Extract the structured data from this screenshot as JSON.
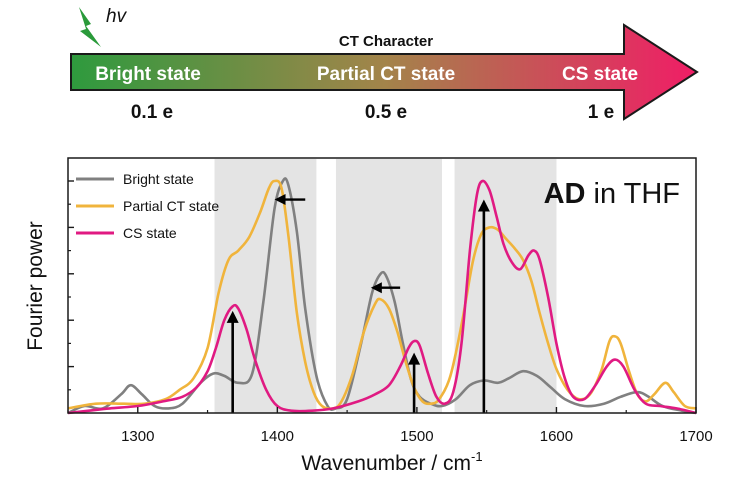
{
  "header": {
    "excitation_label": "hv",
    "ct_character_label": "CT Character",
    "states": [
      "Bright state",
      "Partial CT state",
      "CS state"
    ],
    "charges": [
      "0.1 e",
      "0.5 e",
      "1 e"
    ],
    "arrow_colors": [
      "#2e9a3e",
      "#a3844a",
      "#f01d66"
    ],
    "lightning_color": "#2a9a3a"
  },
  "chart_data": {
    "type": "line",
    "xlabel": "Wavenumber / cm",
    "xlabel_superscript": "-1",
    "ylabel": "Fourier power",
    "annotation_bold": "AD",
    "annotation_rest": " in THF",
    "xlim": [
      1250,
      1700
    ],
    "ylim": [
      0,
      1.02
    ],
    "xticks": [
      1300,
      1400,
      1500,
      1600,
      1700
    ],
    "xtick_labels": [
      "1300",
      "1400",
      "1500",
      "1600",
      "1700"
    ],
    "y_tick_values": [
      0.2,
      0.4,
      0.6,
      0.8,
      1.0
    ],
    "shaded_regions": [
      [
        1355,
        1428
      ],
      [
        1442,
        1518
      ],
      [
        1527,
        1600
      ]
    ],
    "series": [
      {
        "name": "Bright state",
        "color": "#808080",
        "points": [
          [
            1250,
            0.0
          ],
          [
            1262,
            0.03
          ],
          [
            1275,
            0.02
          ],
          [
            1288,
            0.08
          ],
          [
            1295,
            0.12
          ],
          [
            1303,
            0.08
          ],
          [
            1312,
            0.03
          ],
          [
            1322,
            0.02
          ],
          [
            1332,
            0.04
          ],
          [
            1345,
            0.13
          ],
          [
            1354,
            0.17
          ],
          [
            1362,
            0.16
          ],
          [
            1372,
            0.13
          ],
          [
            1382,
            0.17
          ],
          [
            1390,
            0.48
          ],
          [
            1398,
            0.88
          ],
          [
            1404,
            1.0
          ],
          [
            1408,
            0.98
          ],
          [
            1414,
            0.78
          ],
          [
            1420,
            0.45
          ],
          [
            1428,
            0.16
          ],
          [
            1436,
            0.03
          ],
          [
            1442,
            0.02
          ],
          [
            1450,
            0.06
          ],
          [
            1460,
            0.3
          ],
          [
            1468,
            0.52
          ],
          [
            1474,
            0.6
          ],
          [
            1478,
            0.59
          ],
          [
            1484,
            0.48
          ],
          [
            1490,
            0.3
          ],
          [
            1496,
            0.14
          ],
          [
            1502,
            0.07
          ],
          [
            1510,
            0.04
          ],
          [
            1518,
            0.03
          ],
          [
            1528,
            0.06
          ],
          [
            1538,
            0.12
          ],
          [
            1548,
            0.14
          ],
          [
            1558,
            0.13
          ],
          [
            1566,
            0.15
          ],
          [
            1576,
            0.18
          ],
          [
            1586,
            0.16
          ],
          [
            1596,
            0.11
          ],
          [
            1606,
            0.06
          ],
          [
            1620,
            0.03
          ],
          [
            1634,
            0.04
          ],
          [
            1646,
            0.07
          ],
          [
            1658,
            0.09
          ],
          [
            1666,
            0.07
          ],
          [
            1676,
            0.03
          ],
          [
            1690,
            0.01
          ],
          [
            1700,
            0.0
          ]
        ]
      },
      {
        "name": "Partial CT state",
        "color": "#f0b43c",
        "points": [
          [
            1250,
            0.02
          ],
          [
            1270,
            0.04
          ],
          [
            1290,
            0.04
          ],
          [
            1305,
            0.04
          ],
          [
            1320,
            0.06
          ],
          [
            1330,
            0.1
          ],
          [
            1340,
            0.15
          ],
          [
            1350,
            0.28
          ],
          [
            1358,
            0.52
          ],
          [
            1365,
            0.66
          ],
          [
            1372,
            0.7
          ],
          [
            1380,
            0.76
          ],
          [
            1388,
            0.87
          ],
          [
            1394,
            0.97
          ],
          [
            1398,
            1.0
          ],
          [
            1403,
            0.97
          ],
          [
            1408,
            0.76
          ],
          [
            1414,
            0.43
          ],
          [
            1420,
            0.22
          ],
          [
            1426,
            0.09
          ],
          [
            1432,
            0.03
          ],
          [
            1440,
            0.02
          ],
          [
            1446,
            0.05
          ],
          [
            1454,
            0.17
          ],
          [
            1462,
            0.35
          ],
          [
            1470,
            0.47
          ],
          [
            1474,
            0.49
          ],
          [
            1480,
            0.45
          ],
          [
            1486,
            0.35
          ],
          [
            1492,
            0.22
          ],
          [
            1498,
            0.11
          ],
          [
            1504,
            0.05
          ],
          [
            1510,
            0.04
          ],
          [
            1516,
            0.06
          ],
          [
            1524,
            0.16
          ],
          [
            1532,
            0.38
          ],
          [
            1540,
            0.65
          ],
          [
            1546,
            0.77
          ],
          [
            1552,
            0.8
          ],
          [
            1558,
            0.79
          ],
          [
            1564,
            0.75
          ],
          [
            1570,
            0.71
          ],
          [
            1576,
            0.66
          ],
          [
            1582,
            0.57
          ],
          [
            1588,
            0.43
          ],
          [
            1594,
            0.3
          ],
          [
            1600,
            0.19
          ],
          [
            1608,
            0.1
          ],
          [
            1616,
            0.06
          ],
          [
            1624,
            0.08
          ],
          [
            1632,
            0.18
          ],
          [
            1638,
            0.31
          ],
          [
            1642,
            0.33
          ],
          [
            1646,
            0.3
          ],
          [
            1652,
            0.18
          ],
          [
            1658,
            0.08
          ],
          [
            1664,
            0.05
          ],
          [
            1670,
            0.08
          ],
          [
            1678,
            0.13
          ],
          [
            1684,
            0.09
          ],
          [
            1692,
            0.03
          ],
          [
            1700,
            0.02
          ]
        ]
      },
      {
        "name": "CS state",
        "color": "#e01a82",
        "points": [
          [
            1250,
            0.0
          ],
          [
            1265,
            0.01
          ],
          [
            1280,
            0.02
          ],
          [
            1300,
            0.03
          ],
          [
            1318,
            0.05
          ],
          [
            1332,
            0.07
          ],
          [
            1342,
            0.11
          ],
          [
            1350,
            0.18
          ],
          [
            1356,
            0.28
          ],
          [
            1362,
            0.4
          ],
          [
            1368,
            0.46
          ],
          [
            1372,
            0.45
          ],
          [
            1378,
            0.36
          ],
          [
            1384,
            0.23
          ],
          [
            1392,
            0.1
          ],
          [
            1400,
            0.03
          ],
          [
            1410,
            0.01
          ],
          [
            1425,
            0.01
          ],
          [
            1440,
            0.02
          ],
          [
            1458,
            0.05
          ],
          [
            1470,
            0.08
          ],
          [
            1480,
            0.12
          ],
          [
            1488,
            0.2
          ],
          [
            1494,
            0.28
          ],
          [
            1498,
            0.31
          ],
          [
            1502,
            0.29
          ],
          [
            1508,
            0.17
          ],
          [
            1514,
            0.07
          ],
          [
            1520,
            0.04
          ],
          [
            1526,
            0.09
          ],
          [
            1532,
            0.3
          ],
          [
            1538,
            0.7
          ],
          [
            1543,
            0.94
          ],
          [
            1547,
            1.0
          ],
          [
            1552,
            0.96
          ],
          [
            1557,
            0.85
          ],
          [
            1562,
            0.73
          ],
          [
            1568,
            0.65
          ],
          [
            1574,
            0.62
          ],
          [
            1580,
            0.68
          ],
          [
            1584,
            0.7
          ],
          [
            1588,
            0.66
          ],
          [
            1594,
            0.5
          ],
          [
            1600,
            0.3
          ],
          [
            1606,
            0.15
          ],
          [
            1612,
            0.07
          ],
          [
            1620,
            0.06
          ],
          [
            1628,
            0.12
          ],
          [
            1636,
            0.2
          ],
          [
            1642,
            0.23
          ],
          [
            1648,
            0.2
          ],
          [
            1656,
            0.1
          ],
          [
            1664,
            0.04
          ],
          [
            1674,
            0.03
          ],
          [
            1686,
            0.02
          ],
          [
            1700,
            0.0
          ]
        ]
      }
    ],
    "up_arrows": [
      {
        "x": 1368,
        "y_top": 0.44,
        "color": "#000000"
      },
      {
        "x": 1498,
        "y_top": 0.26,
        "color": "#000000"
      },
      {
        "x": 1548,
        "y_top": 0.92,
        "color": "#000000"
      }
    ],
    "shift_arrows": [
      {
        "x_from": 1420,
        "x_to": 1398,
        "y": 0.92,
        "color": "#000000"
      },
      {
        "x_from": 1488,
        "x_to": 1467,
        "y": 0.54,
        "color": "#000000"
      }
    ]
  }
}
